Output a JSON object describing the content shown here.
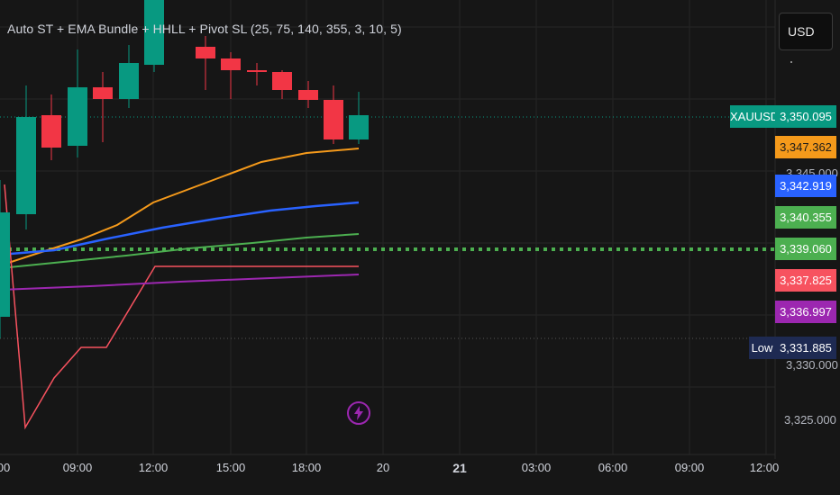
{
  "indicator": {
    "title": "Auto ST + EMA Bundle + HHLL + Pivot SL (25, 75, 140, 355, 3, 10, 5)"
  },
  "currency": {
    "label": "USD"
  },
  "symbol_label": "XAUUSD",
  "low_label": "Low",
  "price_tags": [
    {
      "name": "xauusd-price",
      "value": "3,350.095",
      "color": "#089981"
    },
    {
      "name": "ema-orange-price",
      "value": "3,347.362",
      "color": "#f59a1b"
    },
    {
      "name": "ema-blue-price",
      "value": "3,342.919",
      "color": "#2962ff"
    },
    {
      "name": "ema-green-price",
      "value": "3,340.355",
      "color": "#4caf50"
    },
    {
      "name": "dotted-green-price",
      "value": "3,339.060",
      "color": "#4caf50"
    },
    {
      "name": "red-line-price",
      "value": "3,337.825",
      "color": "#f7525f"
    },
    {
      "name": "purple-line-price",
      "value": "3,336.997",
      "color": "#9c27b0"
    },
    {
      "name": "low-price",
      "value": "3,331.885",
      "color": "#1e2a52"
    }
  ],
  "price_axis": {
    "bottom_tick": "3,325.000"
  },
  "time_axis": [
    {
      "label": "00",
      "bold": false
    },
    {
      "label": "09:00",
      "bold": false
    },
    {
      "label": "12:00",
      "bold": false
    },
    {
      "label": "15:00",
      "bold": false
    },
    {
      "label": "18:00",
      "bold": false
    },
    {
      "label": "20",
      "bold": false
    },
    {
      "label": "21",
      "bold": true
    },
    {
      "label": "03:00",
      "bold": false
    },
    {
      "label": "06:00",
      "bold": false
    },
    {
      "label": "09:00",
      "bold": false
    },
    {
      "label": "12:00",
      "bold": false
    }
  ],
  "colors": {
    "up": "#089981",
    "down": "#f23645",
    "ema_orange": "#f59a1b",
    "ema_blue": "#2962ff",
    "ema_green": "#4caf50",
    "red_line": "#f7525f",
    "purple_line": "#9c27b0"
  }
}
